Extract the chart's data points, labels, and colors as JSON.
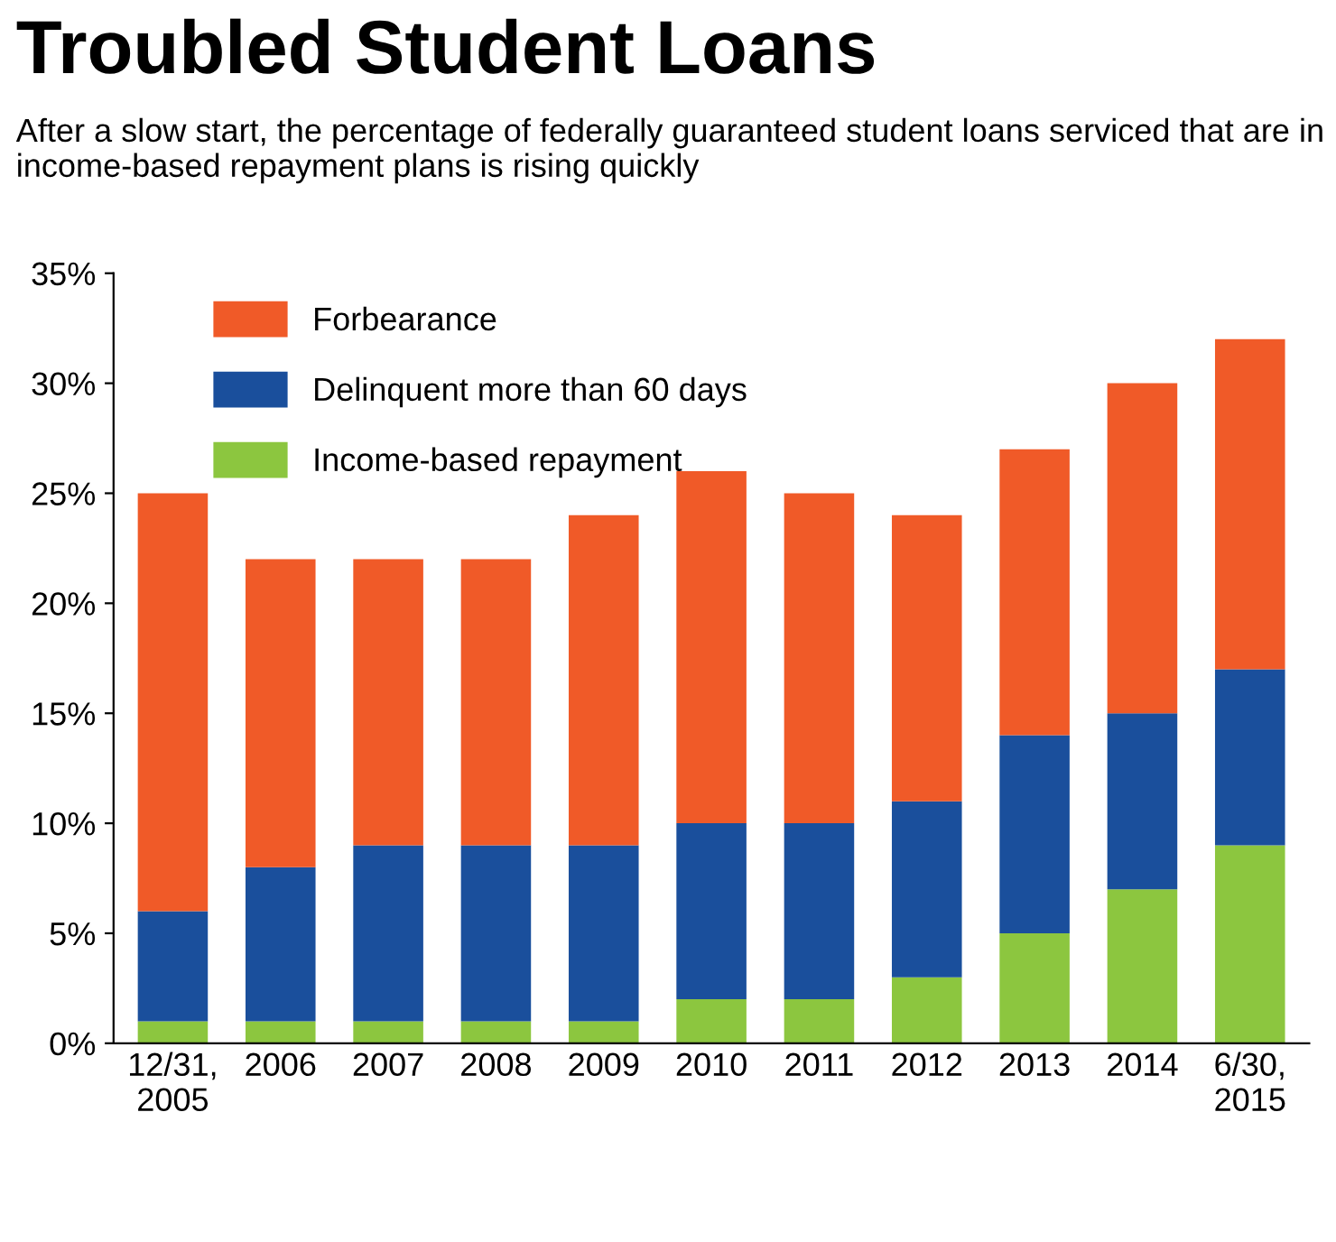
{
  "chart_data": {
    "type": "bar",
    "stacked": true,
    "title": "Troubled Student Loans",
    "subtitle": "After a slow start, the percentage of federally guaranteed student loans serviced that are in income-based repayment plans is rising quickly",
    "categories": [
      "12/31,\n2005",
      "2006",
      "2007",
      "2008",
      "2009",
      "2010",
      "2011",
      "2012",
      "2013",
      "2014",
      "6/30,\n2015"
    ],
    "series": [
      {
        "name": "Income-based repayment",
        "color": "#8cc63f",
        "values": [
          1,
          1,
          1,
          1,
          1,
          2,
          2,
          3,
          5,
          7,
          9
        ]
      },
      {
        "name": "Delinquent more than 60 days",
        "color": "#1a4f9c",
        "values": [
          5,
          7,
          8,
          8,
          8,
          8,
          8,
          8,
          9,
          8,
          8
        ]
      },
      {
        "name": "Forbearance",
        "color": "#f05a28",
        "values": [
          19,
          14,
          13,
          13,
          15,
          16,
          15,
          13,
          13,
          15,
          15
        ]
      }
    ],
    "ylim": [
      0,
      35
    ],
    "yticks": [
      {
        "value": 0,
        "label": "0%"
      },
      {
        "value": 5,
        "label": "5%"
      },
      {
        "value": 10,
        "label": "10%"
      },
      {
        "value": 15,
        "label": "15%"
      },
      {
        "value": 20,
        "label": "20%"
      },
      {
        "value": 25,
        "label": "25%"
      },
      {
        "value": 30,
        "label": "30%"
      },
      {
        "value": 35,
        "label": "35%"
      }
    ],
    "grid": false,
    "legend": "top left"
  }
}
